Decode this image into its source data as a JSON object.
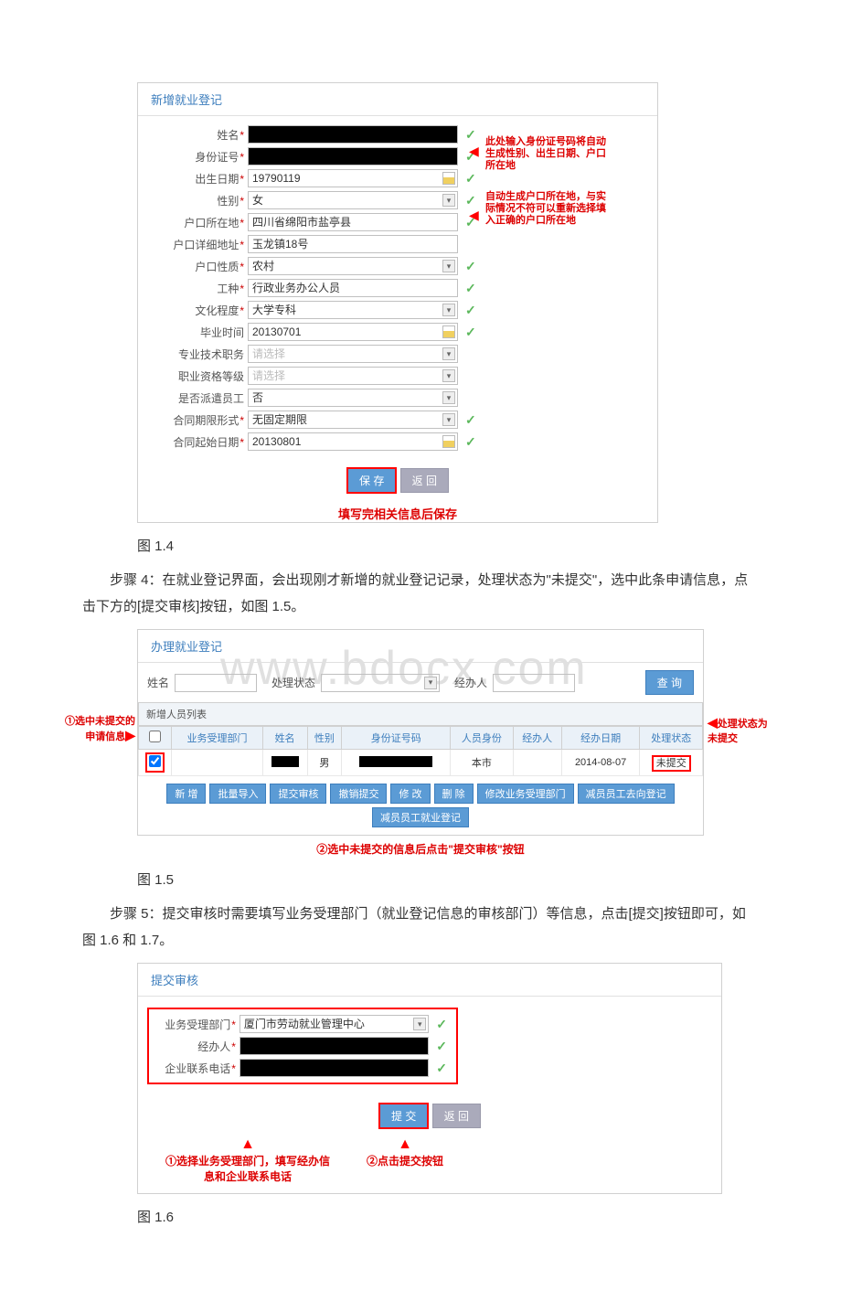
{
  "fig14": {
    "title": "新增就业登记",
    "rows": [
      {
        "label": "姓名",
        "req": true,
        "value": "",
        "black": true,
        "chev": false,
        "cal": false,
        "check": true
      },
      {
        "label": "身份证号",
        "req": true,
        "value": "",
        "black": true,
        "chev": false,
        "cal": false,
        "check": true
      },
      {
        "label": "出生日期",
        "req": true,
        "value": "19790119",
        "black": false,
        "chev": false,
        "cal": true,
        "check": true
      },
      {
        "label": "性别",
        "req": true,
        "value": "女",
        "black": false,
        "chev": true,
        "cal": false,
        "check": true
      },
      {
        "label": "户口所在地",
        "req": true,
        "value": "四川省绵阳市盐亭县",
        "black": false,
        "chev": false,
        "cal": false,
        "check": true
      },
      {
        "label": "户口详细地址",
        "req": true,
        "value": "玉龙镇18号",
        "black": false,
        "chev": false,
        "cal": false,
        "check": false
      },
      {
        "label": "户口性质",
        "req": true,
        "value": "农村",
        "black": false,
        "chev": true,
        "cal": false,
        "check": true
      },
      {
        "label": "工种",
        "req": true,
        "value": "行政业务办公人员",
        "black": false,
        "chev": false,
        "cal": false,
        "check": true
      },
      {
        "label": "文化程度",
        "req": true,
        "value": "大学专科",
        "black": false,
        "chev": true,
        "cal": false,
        "check": true
      },
      {
        "label": "毕业时间",
        "req": false,
        "value": "20130701",
        "black": false,
        "chev": false,
        "cal": true,
        "check": true
      },
      {
        "label": "专业技术职务",
        "req": false,
        "value": "请选择",
        "placeholder": true,
        "black": false,
        "chev": true,
        "cal": false,
        "check": false
      },
      {
        "label": "职业资格等级",
        "req": false,
        "value": "请选择",
        "placeholder": true,
        "black": false,
        "chev": true,
        "cal": false,
        "check": false
      },
      {
        "label": "是否派遣员工",
        "req": false,
        "value": "否",
        "black": false,
        "chev": true,
        "cal": false,
        "check": false
      },
      {
        "label": "合同期限形式",
        "req": true,
        "value": "无固定期限",
        "black": false,
        "chev": true,
        "cal": false,
        "check": true
      },
      {
        "label": "合同起始日期",
        "req": true,
        "value": "20130801",
        "black": false,
        "chev": false,
        "cal": true,
        "check": true
      }
    ],
    "save": "保 存",
    "back": "返 回",
    "anno1": "此处输入身份证号码将自动生成性别、出生日期、户口所在地",
    "anno2": "自动生成户口所在地，与实际情况不符可以重新选择填入正确的户口所在地",
    "saveAnno": "填写完相关信息后保存",
    "caption": "图 1.4"
  },
  "para1": "步骤 4：在就业登记界面，会出现刚才新增的就业登记记录，处理状态为\"未提交\"，选中此条申请信息，点击下方的[提交审核]按钮，如图 1.5。",
  "fig15": {
    "title": "办理就业登记",
    "watermark": "www.bdocx.com",
    "search": {
      "name": "姓名",
      "status": "处理状态",
      "agent": "经办人",
      "query": "查 询"
    },
    "listHead": "新增人员列表",
    "cols": [
      "",
      "业务受理部门",
      "姓名",
      "性别",
      "身份证号码",
      "人员身份",
      "经办人",
      "经办日期",
      "处理状态"
    ],
    "row": {
      "sex": "男",
      "ident": "本市",
      "date": "2014-08-07",
      "status": "未提交"
    },
    "btns": [
      "新 增",
      "批量导入",
      "提交审核",
      "撤销提交",
      "修 改",
      "删 除",
      "修改业务受理部门",
      "减员员工去向登记",
      "减员员工就业登记"
    ],
    "annoL": "①选中未提交的申请信息",
    "annoR": "处理状态为未提交",
    "annoB": "②选中未提交的信息后点击\"提交审核\"按钮",
    "caption": "图 1.5"
  },
  "para2": "步骤 5：提交审核时需要填写业务受理部门（就业登记信息的审核部门）等信息，点击[提交]按钮即可，如图 1.6 和 1.7。",
  "fig16": {
    "title": "提交审核",
    "rows": [
      {
        "label": "业务受理部门",
        "req": true,
        "value": "厦门市劳动就业管理中心",
        "chev": true,
        "check": true
      },
      {
        "label": "经办人",
        "req": true,
        "value": "",
        "black": true,
        "chev": false,
        "check": true
      },
      {
        "label": "企业联系电话",
        "req": true,
        "value": "",
        "black": true,
        "chev": false,
        "check": true
      }
    ],
    "submit": "提 交",
    "back": "返 回",
    "anno1": "①选择业务受理部门，填写经办信息和企业联系电话",
    "anno2": "②点击提交按钮",
    "caption": "图 1.6"
  }
}
